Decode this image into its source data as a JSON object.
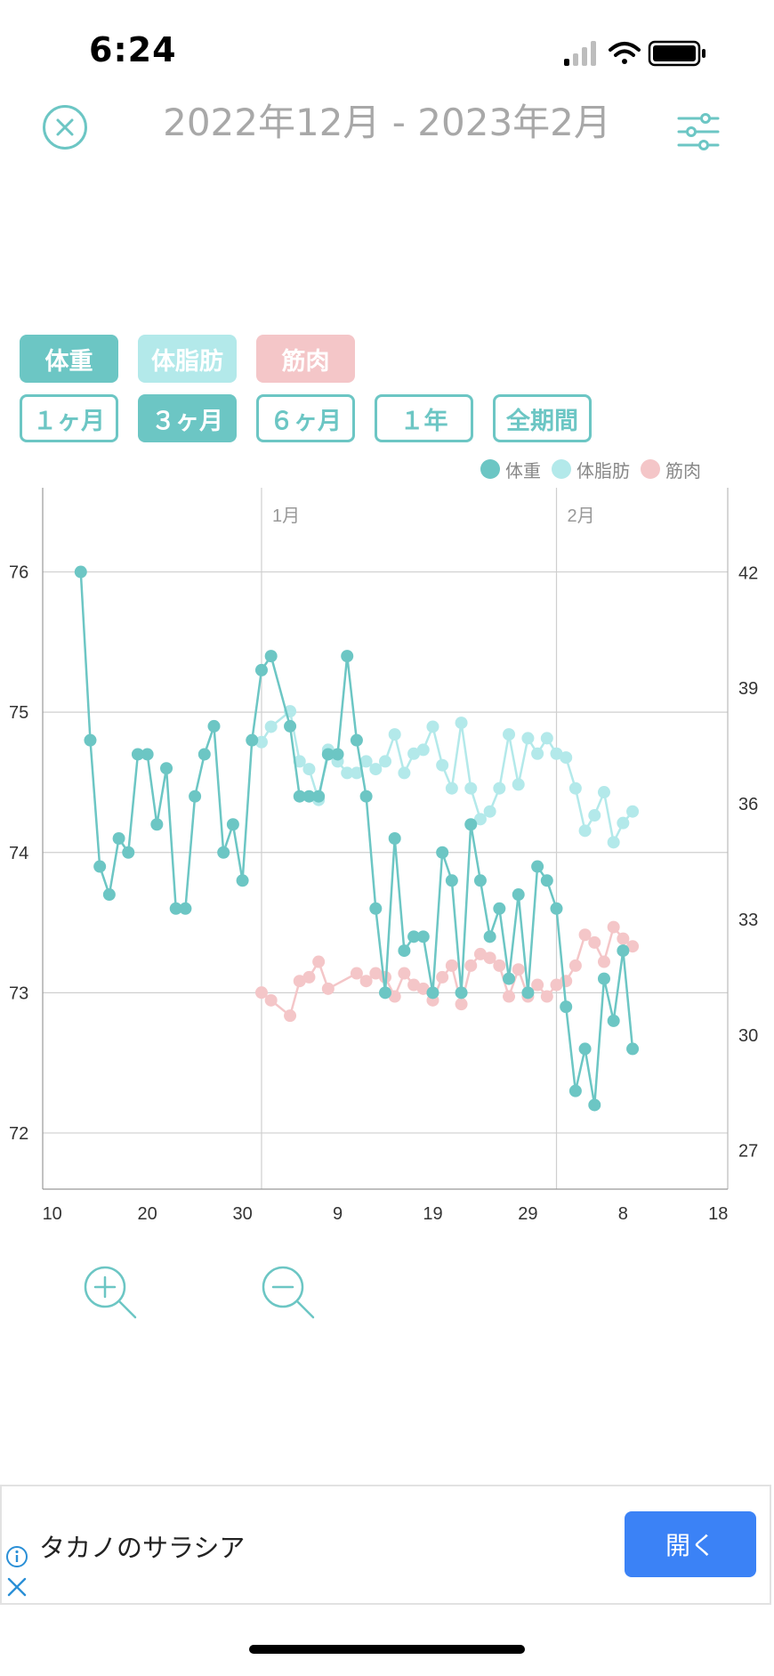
{
  "status_bar": {
    "time": "6:24"
  },
  "header": {
    "title": "2022年12月 - 2023年2月",
    "close_icon": "close-circle-icon",
    "settings_icon": "sliders-icon"
  },
  "filters": {
    "metrics": [
      {
        "label": "体重",
        "color": "#6cc6c4",
        "selected": true
      },
      {
        "label": "体脂肪",
        "color": "#b3e9ea",
        "selected": true
      },
      {
        "label": "筋肉",
        "color": "#f4c6c8",
        "selected": true
      }
    ],
    "periods": [
      {
        "label": "１ヶ月",
        "selected": false
      },
      {
        "label": "３ヶ月",
        "selected": true
      },
      {
        "label": "６ヶ月",
        "selected": false
      },
      {
        "label": "１年",
        "selected": false
      },
      {
        "label": "全期間",
        "selected": false
      }
    ]
  },
  "chart_data": {
    "type": "line",
    "legend": [
      "体重",
      "体脂肪",
      "筋肉"
    ],
    "legend_position": "top-right",
    "grid": true,
    "x_axis": {
      "unit": "day",
      "ticks": [
        "10",
        "20",
        "30",
        "9",
        "19",
        "29",
        "8",
        "18"
      ],
      "tick_days": [
        10,
        20,
        30,
        40,
        50,
        60,
        70,
        80
      ],
      "range": [
        9,
        81
      ]
    },
    "month_markers": [
      {
        "label": "1月",
        "day": 32
      },
      {
        "label": "2月",
        "day": 63
      }
    ],
    "y_left": {
      "ticks": [
        72,
        73,
        74,
        75,
        76
      ],
      "range": [
        71.6,
        76.6
      ]
    },
    "y_right": {
      "ticks": [
        27,
        30,
        33,
        36,
        39,
        42
      ],
      "range": [
        26.0,
        44.2
      ]
    },
    "series": [
      {
        "name": "体重",
        "axis": "left",
        "color": "#6cc6c4",
        "points": [
          [
            13,
            76.0
          ],
          [
            14,
            74.8
          ],
          [
            15,
            73.9
          ],
          [
            16,
            73.7
          ],
          [
            17,
            74.1
          ],
          [
            18,
            74.0
          ],
          [
            19,
            74.7
          ],
          [
            20,
            74.7
          ],
          [
            21,
            74.2
          ],
          [
            22,
            74.6
          ],
          [
            23,
            73.6
          ],
          [
            24,
            73.6
          ],
          [
            25,
            74.4
          ],
          [
            26,
            74.7
          ],
          [
            27,
            74.9
          ],
          [
            28,
            74.0
          ],
          [
            29,
            74.2
          ],
          [
            30,
            73.8
          ],
          [
            31,
            74.8
          ],
          [
            32,
            75.3
          ],
          [
            33,
            75.4
          ],
          [
            35,
            74.9
          ],
          [
            36,
            74.4
          ],
          [
            37,
            74.4
          ],
          [
            38,
            74.4
          ],
          [
            39,
            74.7
          ],
          [
            40,
            74.7
          ],
          [
            41,
            75.4
          ],
          [
            42,
            74.8
          ],
          [
            43,
            74.4
          ],
          [
            44,
            73.6
          ],
          [
            45,
            73.0
          ],
          [
            46,
            74.1
          ],
          [
            47,
            73.3
          ],
          [
            48,
            73.4
          ],
          [
            49,
            73.4
          ],
          [
            50,
            73.0
          ],
          [
            51,
            74.0
          ],
          [
            52,
            73.8
          ],
          [
            53,
            73.0
          ],
          [
            54,
            74.2
          ],
          [
            55,
            73.8
          ],
          [
            56,
            73.4
          ],
          [
            57,
            73.6
          ],
          [
            58,
            73.1
          ],
          [
            59,
            73.7
          ],
          [
            60,
            73.0
          ],
          [
            61,
            73.9
          ],
          [
            62,
            73.8
          ],
          [
            63,
            73.6
          ],
          [
            64,
            72.9
          ],
          [
            65,
            72.3
          ],
          [
            66,
            72.6
          ],
          [
            67,
            72.2
          ],
          [
            68,
            73.1
          ],
          [
            69,
            72.8
          ],
          [
            70,
            73.3
          ],
          [
            71,
            72.6
          ]
        ]
      },
      {
        "name": "体脂肪",
        "axis": "right",
        "color": "#b3e9ea",
        "points": [
          [
            32,
            37.6
          ],
          [
            33,
            38.0
          ],
          [
            35,
            38.4
          ],
          [
            36,
            37.1
          ],
          [
            37,
            36.9
          ],
          [
            38,
            36.1
          ],
          [
            39,
            37.4
          ],
          [
            40,
            37.1
          ],
          [
            41,
            36.8
          ],
          [
            42,
            36.8
          ],
          [
            43,
            37.1
          ],
          [
            44,
            36.9
          ],
          [
            45,
            37.1
          ],
          [
            46,
            37.8
          ],
          [
            47,
            36.8
          ],
          [
            48,
            37.3
          ],
          [
            49,
            37.4
          ],
          [
            50,
            38.0
          ],
          [
            51,
            37.0
          ],
          [
            52,
            36.4
          ],
          [
            53,
            38.1
          ],
          [
            54,
            36.4
          ],
          [
            55,
            35.6
          ],
          [
            56,
            35.8
          ],
          [
            57,
            36.4
          ],
          [
            58,
            37.8
          ],
          [
            59,
            36.5
          ],
          [
            60,
            37.7
          ],
          [
            61,
            37.3
          ],
          [
            62,
            37.7
          ],
          [
            63,
            37.3
          ],
          [
            64,
            37.2
          ],
          [
            65,
            36.4
          ],
          [
            66,
            35.3
          ],
          [
            67,
            35.7
          ],
          [
            68,
            36.3
          ],
          [
            69,
            35.0
          ],
          [
            70,
            35.5
          ],
          [
            71,
            35.8
          ]
        ]
      },
      {
        "name": "筋肉",
        "axis": "right",
        "color": "#f4c6c8",
        "points": [
          [
            32,
            31.1
          ],
          [
            33,
            30.9
          ],
          [
            35,
            30.5
          ],
          [
            36,
            31.4
          ],
          [
            37,
            31.5
          ],
          [
            38,
            31.9
          ],
          [
            39,
            31.2
          ],
          [
            42,
            31.6
          ],
          [
            43,
            31.4
          ],
          [
            44,
            31.6
          ],
          [
            45,
            31.5
          ],
          [
            46,
            31.0
          ],
          [
            47,
            31.6
          ],
          [
            48,
            31.3
          ],
          [
            49,
            31.2
          ],
          [
            50,
            30.9
          ],
          [
            51,
            31.5
          ],
          [
            52,
            31.8
          ],
          [
            53,
            30.8
          ],
          [
            54,
            31.8
          ],
          [
            55,
            32.1
          ],
          [
            56,
            32.0
          ],
          [
            57,
            31.8
          ],
          [
            58,
            31.0
          ],
          [
            59,
            31.7
          ],
          [
            60,
            31.0
          ],
          [
            61,
            31.3
          ],
          [
            62,
            31.0
          ],
          [
            63,
            31.3
          ],
          [
            64,
            31.4
          ],
          [
            65,
            31.8
          ],
          [
            66,
            32.6
          ],
          [
            67,
            32.4
          ],
          [
            68,
            31.9
          ],
          [
            69,
            32.8
          ],
          [
            70,
            32.5
          ],
          [
            71,
            32.3
          ]
        ]
      }
    ]
  },
  "zoom": {
    "in_icon": "zoom-in-icon",
    "out_icon": "zoom-out-icon"
  },
  "ad": {
    "text": "タカノのサラシア",
    "button": "開く",
    "info_icon": "info-icon",
    "close_icon": "close-icon"
  }
}
